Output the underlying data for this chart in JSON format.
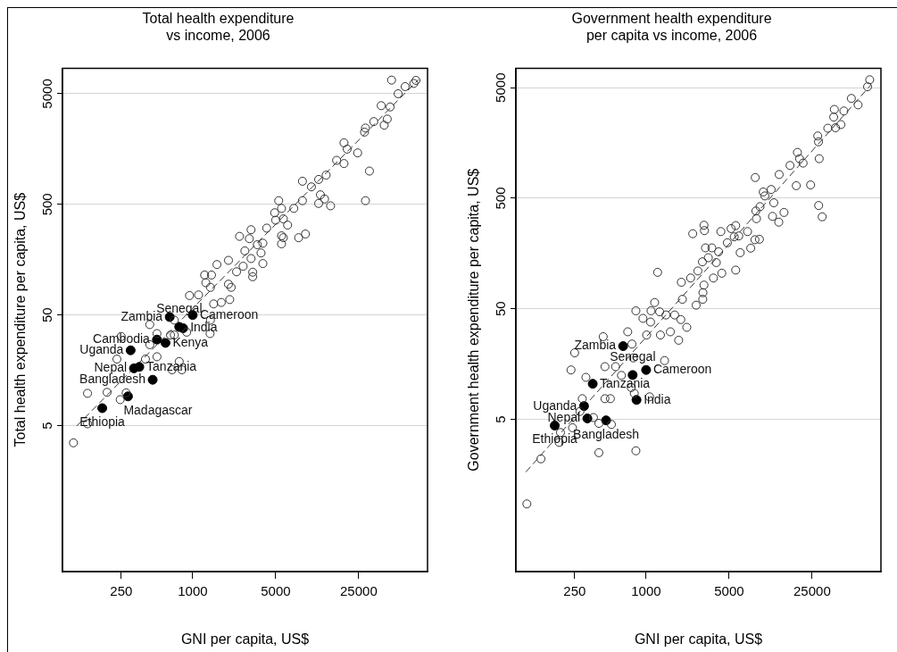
{
  "chart_data": [
    {
      "type": "scatter",
      "title": "Total health expenditure\nvs income, 2006",
      "xlabel": "GNI per capita, US$",
      "ylabel": "Total health expenditure per capita, US$",
      "log": "xy",
      "xlim": [
        80,
        95000
      ],
      "ylim": [
        0.24,
        8500
      ],
      "xticks": [
        250,
        1000,
        5000,
        25000
      ],
      "yticks": [
        5,
        50,
        500,
        5000
      ],
      "grid": "y",
      "marker": "circle",
      "series": [
        {
          "color": "#333333",
          "x": [
            47300,
            76000,
            72800,
            61500,
            53700,
            46000,
            38700,
            43500,
            41000,
            33500,
            28500,
            28000,
            30800,
            28500,
            18800,
            20000,
            24500,
            16300,
            18800,
            13300,
            11500,
            10000,
            8400,
            11900,
            12900,
            14500,
            11500,
            8400,
            7100,
            5300,
            4900,
            5600,
            5800,
            5000,
            6300,
            5600,
            5800,
            5600,
            7800,
            8900,
            4200,
            3100,
            2480,
            3000,
            3900,
            3500,
            2750,
            3760,
            3100,
            3900,
            3200,
            3200,
            2000,
            1600,
            2340,
            2660,
            1260,
            1440,
            1290,
            1410,
            2000,
            2110,
            1120,
            940,
            1500,
            1740,
            2050,
            700,
            435,
            1410,
            890,
            250,
            500,
            650,
            700,
            435,
            230,
            400,
            500,
            770,
            670,
            810,
            130,
            190,
            275,
            245,
            130,
            99,
            1400
          ],
          "values": [
            6640,
            6600,
            6200,
            5800,
            5000,
            3800,
            3900,
            2950,
            2600,
            2800,
            2450,
            2250,
            1000,
            540,
            1800,
            1580,
            1460,
            1250,
            1170,
            920,
            840,
            720,
            810,
            610,
            560,
            485,
            510,
            540,
            460,
            540,
            420,
            460,
            370,
            360,
            325,
            260,
            250,
            220,
            250,
            270,
            305,
            295,
            257,
            245,
            223,
            216,
            190,
            182,
            162,
            146,
            122,
            111,
            156,
            143,
            123,
            138,
            115,
            115,
            98,
            89,
            95,
            89,
            76,
            75,
            63,
            65,
            69,
            45,
            41,
            45,
            35,
            32,
            34,
            33,
            33,
            27,
            20,
            20,
            21,
            19,
            16,
            16,
            9.8,
            10,
            9.9,
            8.6,
            5.2,
            3.5,
            34
          ]
        },
        {
          "color": "#000000",
          "x": [
            640,
            770,
            1000,
            830,
            500,
            590,
            300,
            320,
            355,
            460,
            285,
            173
          ],
          "values": [
            48,
            39,
            50,
            38,
            30,
            28,
            24,
            16.5,
            17,
            13,
            9.2,
            7.2
          ]
        },
        {
          "type": "line",
          "color": "#333333",
          "line_style": "dashed",
          "marker": "none",
          "x": [
            106,
            79400
          ],
          "values": [
            5,
            6700
          ]
        }
      ],
      "annotations": [
        {
          "text": "Zambia",
          "x": 640,
          "y": 48
        },
        {
          "text": "Senegal",
          "x": 770,
          "y": 39
        },
        {
          "text": "Cameroon",
          "x": 1000,
          "y": 50
        },
        {
          "text": "India",
          "x": 830,
          "y": 38
        },
        {
          "text": "Cambodia",
          "x": 500,
          "y": 30
        },
        {
          "text": "Kenya",
          "x": 590,
          "y": 28
        },
        {
          "text": "Uganda",
          "x": 300,
          "y": 24
        },
        {
          "text": "Nepal",
          "x": 320,
          "y": 16.5
        },
        {
          "text": "Tanzania",
          "x": 355,
          "y": 17
        },
        {
          "text": "Bangladesh",
          "x": 460,
          "y": 13
        },
        {
          "text": "Madagascar",
          "x": 285,
          "y": 9.2
        },
        {
          "text": "Ethiopia",
          "x": 173,
          "y": 7.2
        }
      ]
    },
    {
      "type": "scatter",
      "title": "Government health expenditure\nper capita vs income, 2006",
      "xlabel": "GNI per capita, US$",
      "ylabel": "Government health expenditure per capita, US$",
      "log": "xy",
      "xlim": [
        80,
        95000
      ],
      "ylim": [
        0.21,
        7500
      ],
      "xticks": [
        250,
        1000,
        5000,
        25000
      ],
      "yticks": [
        5,
        50,
        500,
        5000
      ],
      "grid": "y",
      "marker": "circle",
      "series": [
        {
          "color": "#333333",
          "x": [
            76400,
            73300,
            61000,
            53500,
            46300,
            38500,
            38000,
            43700,
            39400,
            33900,
            27900,
            28300,
            28700,
            18800,
            19600,
            21000,
            16300,
            13200,
            18400,
            24300,
            28400,
            30400,
            11300,
            9700,
            10000,
            8300,
            11900,
            9100,
            14500,
            11600,
            13100,
            8400,
            8500,
            7150,
            8250,
            9000,
            7600,
            5680,
            5200,
            5520,
            4830,
            6030,
            6200,
            5680,
            4260,
            3070,
            3100,
            2470,
            3160,
            3580,
            4080,
            3340,
            3900,
            4340,
            3690,
            2980,
            2730,
            2370,
            1980,
            1250,
            3070,
            3010,
            3000,
            2020,
            2640,
            1180,
            820,
            1100,
            1300,
            1470,
            940,
            1090,
            1740,
            1960,
            2200,
            1600,
            700,
            435,
            1010,
            1320,
            1880,
            760,
            250,
            1430,
            780,
            233,
            450,
            553,
            311,
            620,
            750,
            795,
            1070,
            290,
            450,
            500,
            277,
            360,
            400,
            510,
            240,
            190,
            185,
            400,
            820,
            130,
            99
          ],
          "values": [
            5900,
            5100,
            3500,
            4000,
            3080,
            3180,
            2710,
            2320,
            2170,
            2150,
            1830,
            1620,
            1140,
            1300,
            1140,
            1040,
            990,
            820,
            650,
            660,
            430,
            340,
            600,
            570,
            525,
            770,
            455,
            420,
            372,
            343,
            304,
            384,
            327,
            250,
            211,
            213,
            177,
            283,
            266,
            224,
            198,
            228,
            161,
            112,
            250,
            285,
            255,
            239,
            178,
            178,
            164,
            145,
            131,
            105,
            95,
            133,
            110,
            95,
            87,
            107,
            82,
            70,
            61,
            61,
            54,
            57,
            48,
            48,
            47,
            44,
            41,
            38,
            44,
            40,
            34,
            31,
            31,
            28,
            29,
            29,
            26,
            24,
            20,
            17,
            18,
            14,
            15,
            15,
            12,
            12.5,
            9.7,
            8.6,
            8.0,
            7.7,
            7.7,
            7.7,
            5.9,
            5.2,
            4.6,
            4.5,
            4.2,
            3.8,
            3.1,
            2.5,
            2.6,
            2.2,
            0.86
          ]
        },
        {
          "color": "#000000",
          "x": [
            640,
            1000,
            770,
            355,
            830,
            300,
            320,
            460,
            170
          ],
          "values": [
            23,
            14,
            12.6,
            10.5,
            7.5,
            6.6,
            5.1,
            4.9,
            4.4
          ]
        },
        {
          "type": "line",
          "color": "#333333",
          "line_style": "dashed",
          "marker": "none",
          "x": [
            97.5,
            77600
          ],
          "values": [
            1.68,
            5250
          ]
        }
      ],
      "annotations": [
        {
          "text": "Zambia",
          "x": 640,
          "y": 23
        },
        {
          "text": "Cameroon",
          "x": 1000,
          "y": 14
        },
        {
          "text": "Senegal",
          "x": 770,
          "y": 12.6
        },
        {
          "text": "Tanzania",
          "x": 355,
          "y": 10.5
        },
        {
          "text": "India",
          "x": 830,
          "y": 7.5
        },
        {
          "text": "Uganda",
          "x": 300,
          "y": 6.6
        },
        {
          "text": "Nepal",
          "x": 320,
          "y": 5.1
        },
        {
          "text": "Bangladesh",
          "x": 460,
          "y": 4.9
        },
        {
          "text": "Ethiopia",
          "x": 170,
          "y": 4.4
        }
      ]
    }
  ]
}
